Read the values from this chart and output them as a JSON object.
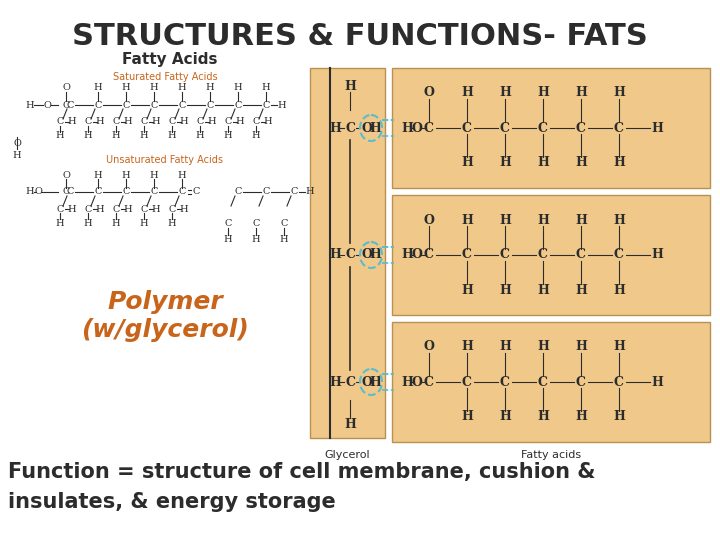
{
  "title": "STRUCTURES & FUNCTIONS- FATS",
  "title_fontsize": 22,
  "title_fontweight": "bold",
  "bg_color": "#ffffff",
  "fatty_acids_label": "Fatty Acids",
  "fatty_acids_label_fontsize": 11,
  "fatty_acids_label_fontweight": "bold",
  "polymer_label": "Polymer\n(w/glycerol)",
  "polymer_color": "#c8651b",
  "polymer_fontsize": 18,
  "function_line1": "Function = structure of cell membrane, cushion &",
  "function_line2": "insulates, & energy storage",
  "function_fontsize": 15,
  "function_fontweight": "bold",
  "box_color": "#f0c88a",
  "box_edge_color": "#b89050",
  "glycerol_label": "Glycerol",
  "fatty_acids_box_label": "Fatty acids",
  "saturated_label": "Saturated Fatty Acids",
  "unsaturated_label": "Unsaturated Fatty Acids",
  "label_color": "#c8651b",
  "dashed_color": "#5bbccc",
  "dark": "#2c2c2c",
  "small_fs": 7.5
}
